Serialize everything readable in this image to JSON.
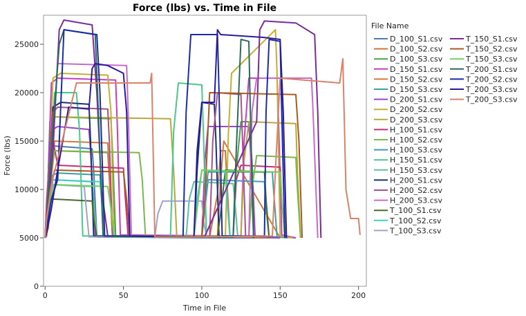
{
  "chart_data": {
    "type": "line",
    "title": "Force (lbs) vs. Time in File",
    "xlabel": "Time in File",
    "ylabel": "Force (lbs)",
    "xlim": [
      -1,
      205
    ],
    "ylim": [
      0,
      28000
    ],
    "x_ticks": [
      "0",
      "50",
      "100",
      "150",
      "200"
    ],
    "y_ticks": [
      "0",
      "5000",
      "10000",
      "15000",
      "20000",
      "25000"
    ],
    "x_tick_values": [
      0,
      50,
      100,
      150,
      200
    ],
    "y_tick_values": [
      0,
      5000,
      10000,
      15000,
      20000,
      25000
    ],
    "grid": false,
    "legend_title": "File Name",
    "legend_position": "right",
    "series": [
      {
        "name": "D_100_S1.csv",
        "color": "#4a7ab5",
        "x": [
          0,
          1,
          3,
          5,
          30,
          31,
          33,
          100,
          150
        ],
        "y": [
          5000,
          5200,
          14500,
          14500,
          14200,
          12000,
          5100,
          5000,
          5000
        ]
      },
      {
        "name": "D_100_S2.csv",
        "color": "#d0733a",
        "x": [
          0,
          2,
          4,
          6,
          40,
          41,
          43,
          105,
          110,
          112,
          115,
          116,
          118,
          150
        ],
        "y": [
          5000,
          6000,
          11500,
          14000,
          13800,
          11000,
          5200,
          5100,
          9500,
          14000,
          14000,
          11000,
          5100,
          5000
        ]
      },
      {
        "name": "D_100_S3.csv",
        "color": "#4aa04a",
        "x": [
          0,
          1,
          3,
          6,
          42,
          43,
          45,
          120,
          122,
          125,
          130,
          131,
          133,
          160
        ],
        "y": [
          5000,
          6000,
          17000,
          17500,
          17300,
          14000,
          5200,
          5200,
          12000,
          17000,
          17000,
          14000,
          5200,
          5000
        ]
      },
      {
        "name": "D_150_S1.csv",
        "color": "#c43ec4",
        "x": [
          0,
          1,
          4,
          8,
          45,
          46,
          48,
          125,
          127,
          130,
          148,
          149,
          151,
          160
        ],
        "y": [
          5000,
          6500,
          21000,
          21500,
          21300,
          17000,
          5300,
          5200,
          15000,
          21500,
          21500,
          17000,
          5300,
          5000
        ]
      },
      {
        "name": "D_150_S2.csv",
        "color": "#d5783e",
        "x": [
          0,
          2,
          6,
          40,
          41,
          43,
          110,
          112,
          114,
          150
        ],
        "y": [
          5000,
          8000,
          15000,
          14800,
          12000,
          5100,
          5100,
          11000,
          15000,
          5000
        ]
      },
      {
        "name": "D_150_S3.csv",
        "color": "#3aa0a0",
        "x": [
          0,
          1,
          5,
          8,
          35,
          36,
          38,
          100,
          102,
          104,
          145,
          146,
          148,
          155
        ],
        "y": [
          5000,
          5500,
          11500,
          11700,
          11500,
          9500,
          5100,
          5100,
          9000,
          11800,
          11800,
          9500,
          5100,
          5000
        ]
      },
      {
        "name": "D_200_S1.csv",
        "color": "#9a46c8",
        "x": [
          0,
          1,
          3,
          8,
          28,
          29,
          32,
          100,
          102,
          104,
          130,
          132,
          134,
          150
        ],
        "y": [
          5000,
          7000,
          16000,
          16500,
          16200,
          14000,
          5200,
          5100,
          13000,
          16500,
          16500,
          13000,
          5200,
          5000
        ]
      },
      {
        "name": "D_200_S2.csv",
        "color": "#c2b033",
        "x": [
          0,
          2,
          5,
          10,
          40,
          42,
          44,
          115,
          117,
          119,
          147,
          148,
          150,
          158
        ],
        "y": [
          5000,
          9000,
          21500,
          22000,
          21800,
          18000,
          5200,
          5100,
          16000,
          22000,
          26500,
          22000,
          5200,
          5000
        ]
      },
      {
        "name": "D_200_S3.csv",
        "color": "#b8a83a",
        "x": [
          0,
          2,
          6,
          80,
          82,
          84,
          125,
          127,
          130,
          160,
          161,
          163
        ],
        "y": [
          5000,
          10000,
          17500,
          17300,
          12000,
          5200,
          5200,
          13000,
          17000,
          16800,
          12000,
          5000
        ]
      },
      {
        "name": "H_100_S1.csv",
        "color": "#c82e74",
        "x": [
          0,
          1,
          4,
          8,
          50,
          51,
          53,
          120,
          122,
          125,
          150,
          151,
          153
        ],
        "y": [
          5000,
          8000,
          16000,
          12500,
          12200,
          9500,
          5200,
          5100,
          11000,
          12500,
          12300,
          9000,
          5000
        ]
      },
      {
        "name": "H_100_S2.csv",
        "color": "#7ab84a",
        "x": [
          0,
          2,
          6,
          60,
          62,
          64,
          130,
          132,
          135,
          160,
          161,
          163
        ],
        "y": [
          5000,
          9000,
          14000,
          13800,
          11000,
          5200,
          5100,
          10000,
          13500,
          13300,
          10000,
          5000
        ]
      },
      {
        "name": "H_100_S3.csv",
        "color": "#3a9ac8",
        "x": [
          0,
          2,
          5,
          30,
          31,
          33,
          100,
          102,
          104,
          140,
          141,
          143
        ],
        "y": [
          5000,
          7000,
          11000,
          10800,
          9000,
          5100,
          5100,
          8000,
          11000,
          10800,
          8000,
          5000
        ]
      },
      {
        "name": "H_150_S1.csv",
        "color": "#4ac88a",
        "x": [
          0,
          2,
          6,
          20,
          22,
          24,
          80,
          82,
          85,
          100,
          101,
          103
        ],
        "y": [
          5000,
          9000,
          20000,
          20000,
          16000,
          5200,
          5200,
          16000,
          21000,
          20800,
          16000,
          5000
        ]
      },
      {
        "name": "H_150_S3.csv",
        "color": "#5ac0a0",
        "x": [
          0,
          2,
          6,
          30,
          31,
          33,
          90,
          92,
          95,
          120,
          121,
          123
        ],
        "y": [
          5000,
          8000,
          10500,
          10300,
          9000,
          5100,
          5100,
          9000,
          10800,
          10600,
          9000,
          5000
        ]
      },
      {
        "name": "H_200_S1.csv",
        "color": "#1a2e7a",
        "x": [
          0,
          1,
          5,
          10,
          28,
          29,
          31,
          95,
          97,
          100,
          108,
          109,
          111
        ],
        "y": [
          5000,
          8500,
          18500,
          19000,
          18800,
          15000,
          5200,
          5100,
          14000,
          19000,
          18800,
          15000,
          5000
        ]
      },
      {
        "name": "H_200_S2.csv",
        "color": "#a8508a",
        "x": [
          0,
          1,
          5,
          8,
          40,
          41,
          43,
          105,
          107,
          110,
          125,
          126,
          128
        ],
        "y": [
          5000,
          9000,
          18000,
          18500,
          18300,
          15000,
          5200,
          5100,
          15000,
          20000,
          19800,
          15000,
          5000
        ]
      },
      {
        "name": "H_200_S3.csv",
        "color": "#c86ac8",
        "x": [
          0,
          1,
          4,
          8,
          52,
          53,
          55,
          130,
          132,
          135,
          170,
          171,
          174
        ],
        "y": [
          5000,
          7000,
          13000,
          23000,
          22800,
          18000,
          5200,
          5100,
          18000,
          21500,
          21500,
          18000,
          5000
        ]
      },
      {
        "name": "T_100_S1.csv",
        "color": "#4a6a2a",
        "x": [
          0,
          1,
          3,
          6,
          30,
          31,
          33,
          110,
          112,
          115,
          140,
          141,
          143
        ],
        "y": [
          5000,
          6000,
          9000,
          9000,
          8800,
          7000,
          5100,
          5100,
          7500,
          12000,
          11800,
          9000,
          5000
        ]
      },
      {
        "name": "T_100_S2.csv",
        "color": "#40d0c0",
        "x": [
          0,
          2,
          5,
          35,
          36,
          38,
          95,
          97,
          100,
          115,
          116,
          118
        ],
        "y": [
          5000,
          8000,
          11000,
          10800,
          9000,
          5100,
          5100,
          9000,
          12000,
          11800,
          9000,
          5000
        ]
      },
      {
        "name": "T_100_S3.csv",
        "color": "#a0a0c8",
        "x": [
          0,
          2,
          5,
          25,
          26,
          28,
          70,
          72,
          75,
          100,
          101,
          103
        ],
        "y": [
          5000,
          7000,
          10500,
          10300,
          8500,
          5100,
          5100,
          7500,
          8800,
          8800,
          7000,
          5000
        ]
      },
      {
        "name": "T_150_S1.csv",
        "color": "#7a2a9a",
        "x": [
          0,
          1,
          3,
          5,
          9,
          12,
          30,
          33,
          36,
          40,
          100,
          102,
          135,
          137,
          140,
          160,
          172,
          174,
          176
        ],
        "y": [
          5000,
          6000,
          10000,
          14000,
          26500,
          27500,
          27000,
          20000,
          10000,
          5200,
          5100,
          5200,
          17000,
          26500,
          27400,
          27200,
          26000,
          18000,
          5000
        ]
      },
      {
        "name": "T_150_S2.csv",
        "color": "#a85a20",
        "x": [
          0,
          2,
          6,
          50,
          52,
          54,
          100,
          102,
          105,
          160,
          162,
          164
        ],
        "y": [
          5000,
          9000,
          12000,
          11800,
          9000,
          5100,
          5100,
          9000,
          20000,
          19800,
          15000,
          5000
        ]
      },
      {
        "name": "T_150_S3.csv",
        "color": "#70d05a",
        "x": [
          0,
          2,
          6,
          40,
          42,
          44,
          95,
          97,
          100,
          150,
          151,
          153
        ],
        "y": [
          5000,
          8000,
          10500,
          10300,
          8000,
          5100,
          5100,
          8000,
          12000,
          11800,
          9000,
          5000
        ]
      },
      {
        "name": "T_200_S1.csv",
        "color": "#2a6a5a",
        "x": [
          0,
          1,
          4,
          9,
          12,
          32,
          34,
          37,
          120,
          122,
          125,
          130,
          131,
          133
        ],
        "y": [
          5000,
          7000,
          14000,
          25000,
          26500,
          26000,
          18000,
          5200,
          5100,
          14000,
          25500,
          25300,
          18000,
          5000
        ]
      },
      {
        "name": "T_200_S2.csv",
        "color": "#1a2aa8",
        "x": [
          0,
          1,
          4,
          8,
          12,
          33,
          35,
          38,
          88,
          90,
          93,
          110,
          111,
          113,
          140,
          141,
          143,
          150,
          151,
          153
        ],
        "y": [
          5000,
          6000,
          9000,
          11000,
          26500,
          26000,
          20000,
          5200,
          5100,
          18000,
          26000,
          26000,
          20000,
          5200,
          5200,
          18000,
          25500,
          25300,
          18000,
          5000
        ]
      },
      {
        "name": "T_200_S3.csv",
        "color": "#2a1aa0",
        "x": [
          0,
          1,
          4,
          8,
          15,
          28,
          30,
          32,
          40,
          50,
          52,
          54,
          95,
          97,
          100,
          106,
          108,
          110,
          112,
          140,
          150,
          152,
          154
        ],
        "y": [
          5000,
          5500,
          8000,
          12000,
          18500,
          18300,
          22500,
          23000,
          22800,
          22000,
          18000,
          5200,
          5100,
          12000,
          19000,
          19000,
          19000,
          26500,
          26000,
          25700,
          25500,
          18000,
          5000
        ]
      },
      {
        "name": "T_200_S3.csv",
        "color": "#d8826a",
        "x": [
          0,
          1,
          4,
          20,
          60,
          67,
          68,
          70,
          100,
          145,
          147,
          150,
          188,
          190,
          192,
          195,
          198,
          200,
          201
        ],
        "y": [
          5000,
          7000,
          10500,
          21000,
          21000,
          21000,
          22000,
          5100,
          5100,
          5200,
          12000,
          21500,
          21000,
          23500,
          10000,
          7000,
          7000,
          7000,
          5300
        ]
      }
    ]
  }
}
